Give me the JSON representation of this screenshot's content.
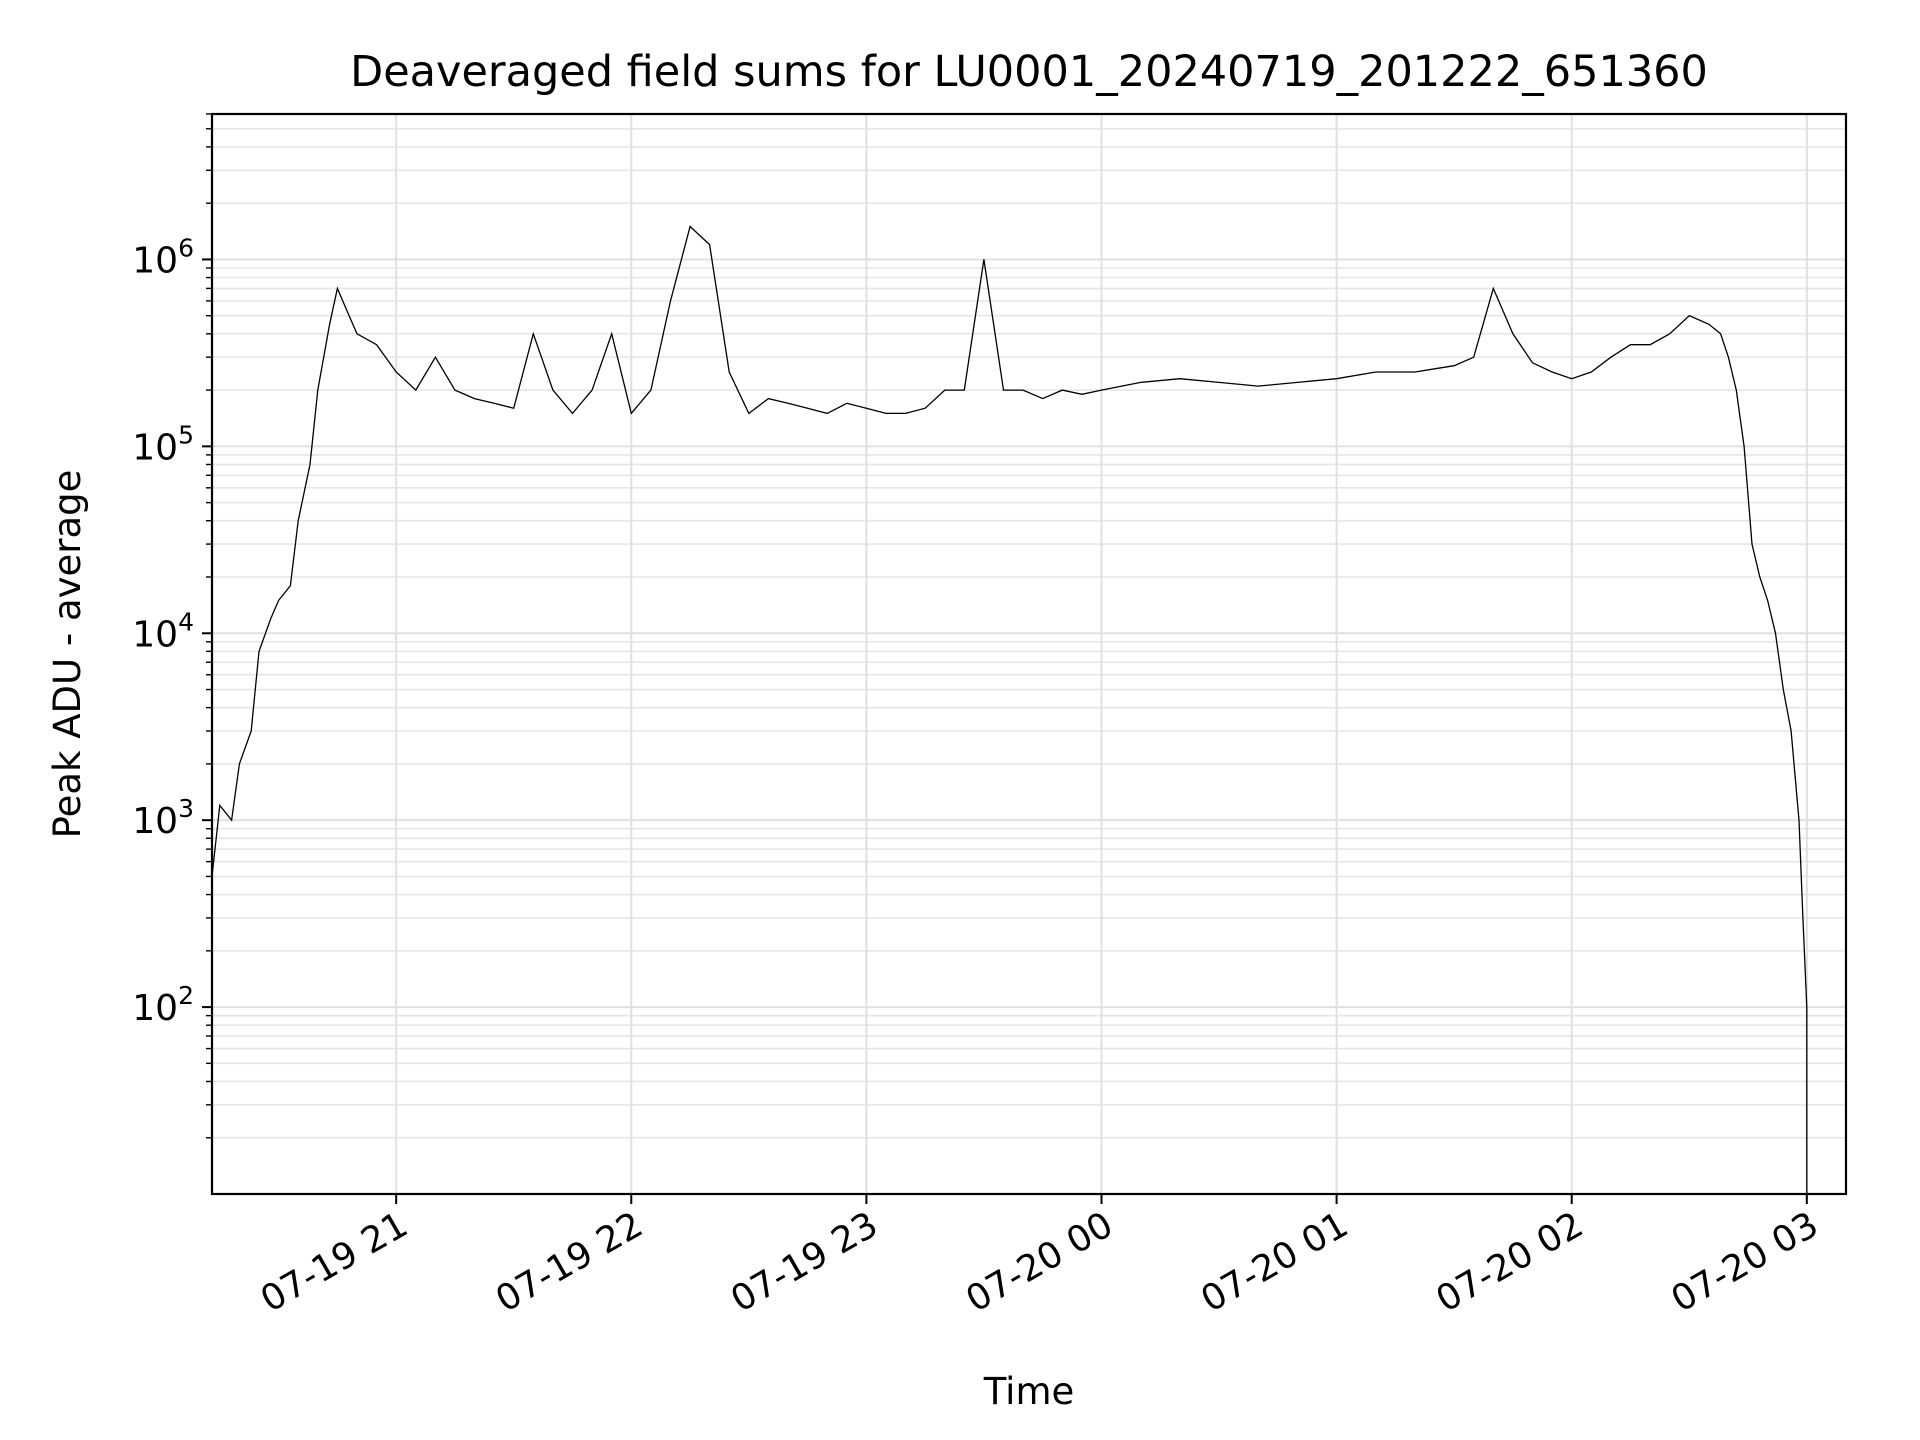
{
  "chart_data": {
    "type": "line",
    "title": "Deaveraged field sums for LU0001_20240719_201222_651360",
    "xlabel": "Time",
    "ylabel": "Peak ADU - average",
    "yscale": "log",
    "xlim": [
      "2024-07-19 20:13",
      "2024-07-20 03:10"
    ],
    "ylim": [
      10,
      6000000
    ],
    "grid": true,
    "line_color": "#000000",
    "x_ticks": [
      "07-19 21",
      "07-19 22",
      "07-19 23",
      "07-20 00",
      "07-20 01",
      "07-20 02",
      "07-20 03"
    ],
    "y_ticks": [
      {
        "base": "10",
        "exp": "2"
      },
      {
        "base": "10",
        "exp": "3"
      },
      {
        "base": "10",
        "exp": "4"
      },
      {
        "base": "10",
        "exp": "5"
      },
      {
        "base": "10",
        "exp": "6"
      }
    ],
    "series": [
      {
        "x": [
          "2024-07-19 20:13",
          "2024-07-19 20:15",
          "2024-07-19 20:18",
          "2024-07-19 20:20",
          "2024-07-19 20:23",
          "2024-07-19 20:25",
          "2024-07-19 20:28",
          "2024-07-19 20:30",
          "2024-07-19 20:33",
          "2024-07-19 20:35",
          "2024-07-19 20:38",
          "2024-07-19 20:40",
          "2024-07-19 20:43",
          "2024-07-19 20:45",
          "2024-07-19 20:48",
          "2024-07-19 20:50",
          "2024-07-19 20:55",
          "2024-07-19 21:00",
          "2024-07-19 21:05",
          "2024-07-19 21:10",
          "2024-07-19 21:15",
          "2024-07-19 21:20",
          "2024-07-19 21:25",
          "2024-07-19 21:30",
          "2024-07-19 21:35",
          "2024-07-19 21:40",
          "2024-07-19 21:45",
          "2024-07-19 21:50",
          "2024-07-19 21:55",
          "2024-07-19 22:00",
          "2024-07-19 22:05",
          "2024-07-19 22:10",
          "2024-07-19 22:15",
          "2024-07-19 22:20",
          "2024-07-19 22:25",
          "2024-07-19 22:30",
          "2024-07-19 22:35",
          "2024-07-19 22:40",
          "2024-07-19 22:45",
          "2024-07-19 22:50",
          "2024-07-19 22:55",
          "2024-07-19 23:00",
          "2024-07-19 23:05",
          "2024-07-19 23:10",
          "2024-07-19 23:15",
          "2024-07-19 23:20",
          "2024-07-19 23:25",
          "2024-07-19 23:30",
          "2024-07-19 23:35",
          "2024-07-19 23:40",
          "2024-07-19 23:45",
          "2024-07-19 23:50",
          "2024-07-19 23:55",
          "2024-07-20 00:00",
          "2024-07-20 00:10",
          "2024-07-20 00:20",
          "2024-07-20 00:30",
          "2024-07-20 00:40",
          "2024-07-20 00:50",
          "2024-07-20 01:00",
          "2024-07-20 01:10",
          "2024-07-20 01:20",
          "2024-07-20 01:25",
          "2024-07-20 01:30",
          "2024-07-20 01:35",
          "2024-07-20 01:40",
          "2024-07-20 01:45",
          "2024-07-20 01:50",
          "2024-07-20 01:55",
          "2024-07-20 02:00",
          "2024-07-20 02:05",
          "2024-07-20 02:10",
          "2024-07-20 02:15",
          "2024-07-20 02:20",
          "2024-07-20 02:25",
          "2024-07-20 02:30",
          "2024-07-20 02:35",
          "2024-07-20 02:38",
          "2024-07-20 02:40",
          "2024-07-20 02:42",
          "2024-07-20 02:44",
          "2024-07-20 02:46",
          "2024-07-20 02:48",
          "2024-07-20 02:50",
          "2024-07-20 02:52",
          "2024-07-20 02:54",
          "2024-07-20 02:56",
          "2024-07-20 02:58",
          "2024-07-20 02:59",
          "2024-07-20 03:00",
          "2024-07-20 03:00",
          "2024-07-20 03:00"
        ],
        "y": [
          500,
          1200,
          1000,
          2000,
          3000,
          8000,
          12000,
          15000,
          18000,
          40000,
          80000,
          200000,
          450000,
          700000,
          500000,
          400000,
          350000,
          250000,
          200000,
          300000,
          200000,
          180000,
          170000,
          160000,
          400000,
          200000,
          150000,
          200000,
          400000,
          150000,
          200000,
          600000,
          1500000,
          1200000,
          250000,
          150000,
          180000,
          170000,
          160000,
          150000,
          170000,
          160000,
          150000,
          150000,
          160000,
          200000,
          200000,
          1000000,
          200000,
          200000,
          180000,
          200000,
          190000,
          200000,
          220000,
          230000,
          220000,
          210000,
          220000,
          230000,
          250000,
          250000,
          260000,
          270000,
          300000,
          700000,
          400000,
          280000,
          250000,
          230000,
          250000,
          300000,
          350000,
          350000,
          400000,
          500000,
          450000,
          400000,
          300000,
          200000,
          100000,
          30000,
          20000,
          15000,
          10000,
          5000,
          3000,
          1000,
          300,
          100,
          30,
          10
        ]
      }
    ]
  }
}
